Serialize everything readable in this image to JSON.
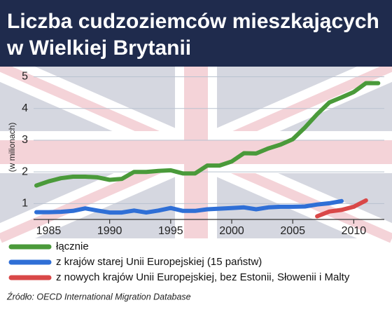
{
  "chart_data": {
    "type": "line",
    "title": "Liczba cudzoziemców mieszkających",
    "subtitle": "w Wielkiej Brytanii",
    "y_label": "(w milionach)",
    "source": "Źródło: OECD International Migration Database",
    "x": [
      1984,
      1985,
      1986,
      1987,
      1988,
      1989,
      1990,
      1991,
      1992,
      1993,
      1994,
      1995,
      1996,
      1997,
      1998,
      1999,
      2000,
      2001,
      2002,
      2003,
      2004,
      2005,
      2006,
      2007,
      2008,
      2009,
      2010,
      2011,
      2012
    ],
    "xlim": [
      1984,
      2012.5
    ],
    "xticks": [
      1985,
      1990,
      1995,
      2000,
      2005,
      2010
    ],
    "ylim": [
      0.5,
      5.1
    ],
    "yticks": [
      1,
      2,
      3,
      4,
      5
    ],
    "grid": true,
    "series": [
      {
        "name": "łącznie",
        "color": "#4a9a3a",
        "values": [
          1.57,
          1.7,
          1.8,
          1.85,
          1.85,
          1.83,
          1.75,
          1.78,
          2.0,
          2.0,
          2.03,
          2.05,
          1.95,
          1.95,
          2.2,
          2.2,
          2.33,
          2.59,
          2.58,
          2.74,
          2.86,
          3.03,
          3.4,
          3.82,
          4.19,
          4.35,
          4.52,
          4.8,
          4.8
        ]
      },
      {
        "name": "z krajów starej Unii Europejskiej (15 państw)",
        "color": "#2f6fd6",
        "values": [
          0.73,
          0.73,
          0.74,
          0.77,
          0.85,
          0.78,
          0.72,
          0.72,
          0.78,
          0.72,
          0.78,
          0.86,
          0.77,
          0.77,
          0.82,
          0.84,
          0.86,
          0.88,
          0.82,
          0.88,
          0.9,
          0.9,
          0.91,
          0.97,
          1.01,
          1.08,
          null,
          null,
          null
        ]
      },
      {
        "name": "z nowych krajów Unii Europejskiej, bez Estonii, Słowenii i Malty",
        "color": "#d94848",
        "values": [
          null,
          null,
          null,
          null,
          null,
          null,
          null,
          null,
          null,
          null,
          null,
          null,
          null,
          null,
          null,
          null,
          null,
          null,
          null,
          null,
          null,
          null,
          null,
          0.6,
          0.75,
          0.8,
          0.9,
          1.1,
          null
        ]
      }
    ]
  }
}
